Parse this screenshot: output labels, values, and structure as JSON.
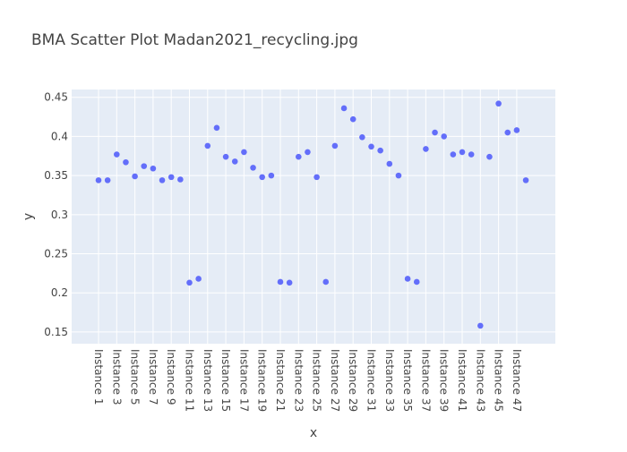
{
  "chart_data": {
    "type": "scatter",
    "title": "BMA Scatter Plot Madan2021_recycling.jpg",
    "xlabel": "x",
    "ylabel": "y",
    "ylim": [
      0.135,
      0.46
    ],
    "yticks": [
      0.15,
      0.2,
      0.25,
      0.3,
      0.35,
      0.4,
      0.45
    ],
    "ytick_labels": [
      "0.15",
      "0.2",
      "0.25",
      "0.3",
      "0.35",
      "0.4",
      "0.45"
    ],
    "xtick_labels": [
      "Instance 1",
      "Instance 3",
      "Instance 5",
      "Instance 7",
      "Instance 9",
      "Instance 11",
      "Instance 13",
      "Instance 15",
      "Instance 17",
      "Instance 19",
      "Instance 21",
      "Instance 23",
      "Instance 25",
      "Instance 27",
      "Instance 29",
      "Instance 31",
      "Instance 33",
      "Instance 35",
      "Instance 37",
      "Instance 39",
      "Instance 41",
      "Instance 43",
      "Instance 45",
      "Instance 47"
    ],
    "grid": true,
    "colors": {
      "marker": "#636efa",
      "plot_bg": "#e5ecf6",
      "grid": "#ffffff",
      "text": "#444444"
    },
    "series": [
      {
        "x": [
          1,
          2,
          3,
          4,
          5,
          6,
          7,
          8,
          9,
          10,
          11,
          12,
          13,
          14,
          15,
          16,
          17,
          18,
          19,
          20,
          21,
          22,
          23,
          24,
          25,
          26,
          27,
          28,
          29,
          30,
          31,
          32,
          33,
          34,
          35,
          36,
          37,
          38,
          39,
          40,
          41,
          42,
          43,
          44,
          45,
          46,
          47,
          48
        ],
        "values": [
          0.344,
          0.344,
          0.377,
          0.367,
          0.349,
          0.362,
          0.359,
          0.344,
          0.348,
          0.345,
          0.213,
          0.218,
          0.388,
          0.411,
          0.374,
          0.368,
          0.38,
          0.36,
          0.348,
          0.35,
          0.214,
          0.213,
          0.374,
          0.38,
          0.348,
          0.214,
          0.388,
          0.436,
          0.422,
          0.399,
          0.387,
          0.382,
          0.365,
          0.35,
          0.218,
          0.214,
          0.384,
          0.405,
          0.4,
          0.377,
          0.38,
          0.377,
          0.158,
          0.374,
          0.442,
          0.405,
          0.408,
          0.344
        ]
      }
    ]
  }
}
